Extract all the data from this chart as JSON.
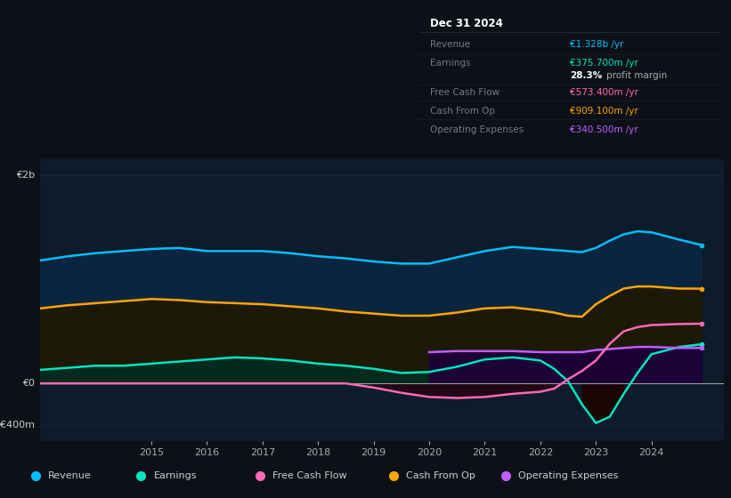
{
  "bg_color": "#0d1117",
  "plot_bg": "#0d1b2a",
  "title_box": {
    "date": "Dec 31 2024",
    "rows": [
      {
        "label": "Revenue",
        "value": "€1.328b /yr",
        "value_color": "#00bfff"
      },
      {
        "label": "Earnings",
        "value": "€375.700m /yr",
        "value_color": "#00e5c0"
      },
      {
        "label": "",
        "value": "28.3% profit margin",
        "value_color": "#ffffff"
      },
      {
        "label": "Free Cash Flow",
        "value": "€573.400m /yr",
        "value_color": "#ff69b4"
      },
      {
        "label": "Cash From Op",
        "value": "€909.100m /yr",
        "value_color": "#ffa500"
      },
      {
        "label": "Operating Expenses",
        "value": "€340.500m /yr",
        "value_color": "#bf5fff"
      }
    ]
  },
  "years": [
    2013.0,
    2013.5,
    2014.0,
    2014.5,
    2015.0,
    2015.5,
    2016.0,
    2016.5,
    2017.0,
    2017.5,
    2018.0,
    2018.5,
    2019.0,
    2019.5,
    2020.0,
    2020.5,
    2021.0,
    2021.5,
    2022.0,
    2022.25,
    2022.5,
    2022.75,
    2023.0,
    2023.25,
    2023.5,
    2023.75,
    2024.0,
    2024.5,
    2024.9
  ],
  "revenue": [
    1.18,
    1.22,
    1.25,
    1.27,
    1.29,
    1.3,
    1.27,
    1.27,
    1.27,
    1.25,
    1.22,
    1.2,
    1.17,
    1.15,
    1.15,
    1.21,
    1.27,
    1.31,
    1.29,
    1.28,
    1.27,
    1.26,
    1.3,
    1.37,
    1.43,
    1.46,
    1.45,
    1.38,
    1.328
  ],
  "cash_from_op": [
    0.72,
    0.75,
    0.77,
    0.79,
    0.81,
    0.8,
    0.78,
    0.77,
    0.76,
    0.74,
    0.72,
    0.69,
    0.67,
    0.65,
    0.65,
    0.68,
    0.72,
    0.73,
    0.7,
    0.68,
    0.65,
    0.64,
    0.76,
    0.84,
    0.91,
    0.93,
    0.93,
    0.91,
    0.9091
  ],
  "earnings": [
    0.13,
    0.15,
    0.17,
    0.17,
    0.19,
    0.21,
    0.23,
    0.25,
    0.24,
    0.22,
    0.19,
    0.17,
    0.14,
    0.1,
    0.11,
    0.16,
    0.23,
    0.25,
    0.22,
    0.14,
    0.02,
    -0.2,
    -0.38,
    -0.32,
    -0.1,
    0.1,
    0.28,
    0.35,
    0.3757
  ],
  "free_cash_flow": [
    0.0,
    0.0,
    0.0,
    0.0,
    0.0,
    0.0,
    0.0,
    0.0,
    0.0,
    0.0,
    0.0,
    0.0,
    -0.04,
    -0.09,
    -0.13,
    -0.14,
    -0.13,
    -0.1,
    -0.08,
    -0.05,
    0.04,
    0.12,
    0.22,
    0.38,
    0.5,
    0.54,
    0.56,
    0.57,
    0.5734
  ],
  "operating_expenses": [
    0.0,
    0.0,
    0.0,
    0.0,
    0.0,
    0.0,
    0.0,
    0.0,
    0.0,
    0.0,
    0.0,
    0.0,
    0.0,
    0.0,
    0.3,
    0.31,
    0.31,
    0.31,
    0.3,
    0.3,
    0.3,
    0.3,
    0.32,
    0.33,
    0.34,
    0.35,
    0.35,
    0.34,
    0.3405
  ],
  "colors": {
    "revenue_line": "#00bfff",
    "revenue_fill": "#0a2a4a",
    "earnings_line": "#00e5c0",
    "earnings_fill": "#003322",
    "earnings_neg_fill": "#1a0000",
    "free_cash_flow_line": "#ff69b4",
    "cash_from_op_line": "#ffa500",
    "cash_from_op_fill": "#2a1800",
    "operating_expenses_line": "#bf5fff",
    "operating_expenses_fill": "#1e0040"
  },
  "ytick_labels": [
    "-€400m",
    "€0",
    "€2b"
  ],
  "ytick_values": [
    -0.4,
    0.0,
    2.0
  ],
  "xtick_years": [
    2015,
    2016,
    2017,
    2018,
    2019,
    2020,
    2021,
    2022,
    2023,
    2024
  ],
  "ylim": [
    -0.55,
    2.15
  ],
  "xlim": [
    2013.0,
    2025.3
  ],
  "legend": [
    {
      "label": "Revenue",
      "color": "#00bfff"
    },
    {
      "label": "Earnings",
      "color": "#00e5c0"
    },
    {
      "label": "Free Cash Flow",
      "color": "#ff69b4"
    },
    {
      "label": "Cash From Op",
      "color": "#ffa500"
    },
    {
      "label": "Operating Expenses",
      "color": "#bf5fff"
    }
  ]
}
